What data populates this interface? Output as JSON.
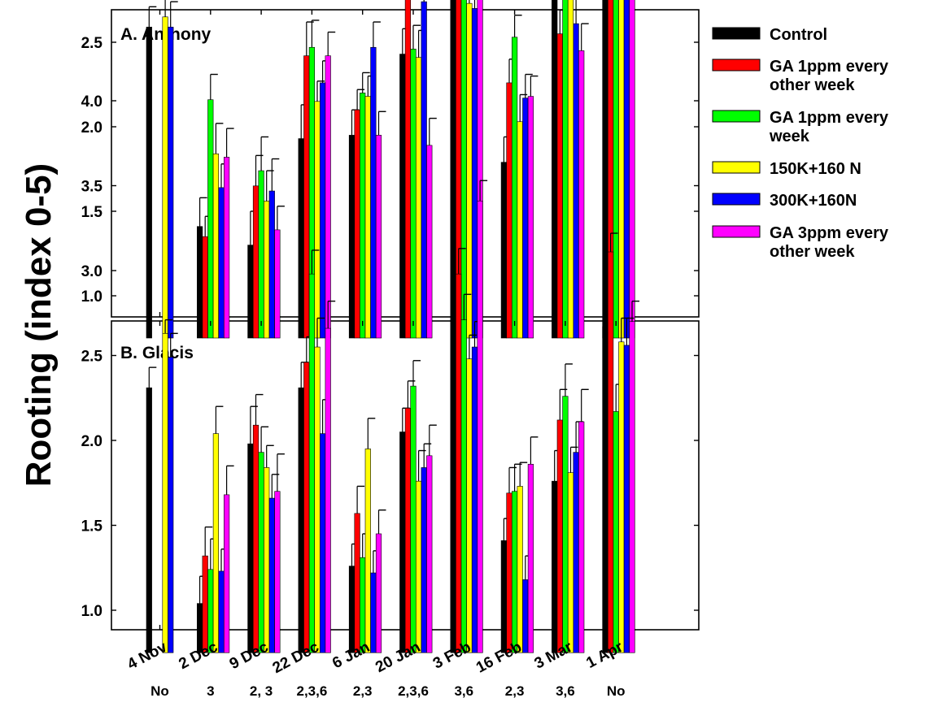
{
  "ylabel": "Rooting (index 0-5)",
  "categories": [
    "4 Nov",
    "2 Dec",
    "9 Dec",
    "22 Dec",
    "6 Jan",
    "20 Jan",
    "3 Feb",
    "16 Feb",
    "3 Mar",
    "1 Apr"
  ],
  "annotations": [
    "No",
    "3",
    "2, 3",
    "2,3,6",
    "2,3",
    "2,3,6",
    "3,6",
    "2,3",
    "3,6",
    "No"
  ],
  "legend": {
    "entries": [
      {
        "label": "Control",
        "color": "#000000"
      },
      {
        "label": "GA 1ppm every other week",
        "color": "#ff0000"
      },
      {
        "label": "GA 1ppm every week",
        "color": "#00ff00"
      },
      {
        "label": "150K+160 N",
        "color": "#ffff00"
      },
      {
        "label": "300K+160N",
        "color": "#0000ff"
      },
      {
        "label": "GA 3ppm every other week",
        "color": "#ff00ff"
      }
    ]
  },
  "chart_data": [
    {
      "type": "bar",
      "title": "A. Anthony",
      "ylim": [
        0.75,
        4.3
      ],
      "yticks": [
        "1.0",
        "1.5",
        "2.0",
        "2.5",
        "3.0",
        "3.5",
        "4.0"
      ],
      "categories": [
        "4 Nov",
        "2 Dec",
        "9 Dec",
        "22 Dec",
        "6 Jan",
        "20 Jan",
        "3 Feb",
        "16 Feb",
        "3 Mar",
        "1 Apr"
      ],
      "series": [
        {
          "name": "Control",
          "values": [
            2.59,
            1.41,
            1.3,
            1.93,
            1.95,
            2.43,
            2.76,
            1.79,
            2.77,
            3.34
          ],
          "errors": [
            0.12,
            0.17,
            0.2,
            0.2,
            0.15,
            0.15,
            0.15,
            0.15,
            0.15,
            0.14
          ]
        },
        {
          "name": "GA 1ppm every other week",
          "values": [
            null,
            1.35,
            1.65,
            2.42,
            2.1,
            2.99,
            2.77,
            2.26,
            2.55,
            3.19
          ],
          "errors": [
            null,
            0.12,
            0.18,
            0.2,
            0.12,
            0.13,
            0.15,
            0.14,
            0.14,
            0.17
          ]
        },
        {
          "name": "GA 1ppm every week",
          "values": [
            null,
            2.16,
            1.74,
            2.47,
            2.2,
            2.46,
            3.69,
            2.53,
            3.13,
            2.98
          ],
          "errors": [
            null,
            0.15,
            0.2,
            0.16,
            0.12,
            0.14,
            0.12,
            0.13,
            0.12,
            0.12
          ]
        },
        {
          "name": "150K+160 N",
          "values": [
            2.65,
            1.84,
            1.56,
            2.15,
            2.18,
            2.41,
            2.73,
            2.03,
            3.05,
            2.95
          ],
          "errors": [
            0.14,
            0.18,
            0.18,
            0.12,
            0.12,
            0.16,
            0.14,
            0.16,
            0.2,
            0.13
          ]
        },
        {
          "name": "300K+160N",
          "values": [
            2.59,
            1.64,
            1.62,
            2.26,
            2.47,
            2.74,
            2.7,
            2.17,
            2.61,
            3.06
          ],
          "errors": [
            0.15,
            0.14,
            0.19,
            0.13,
            0.15,
            0.17,
            0.18,
            0.14,
            0.16,
            0.14
          ]
        },
        {
          "name": "GA 3ppm every other week",
          "values": [
            null,
            1.82,
            1.39,
            2.42,
            1.95,
            1.89,
            3.36,
            2.18,
            2.45,
            3.32
          ],
          "errors": [
            null,
            0.17,
            0.14,
            0.14,
            0.14,
            0.16,
            0.12,
            0.12,
            0.16,
            0.12
          ]
        }
      ]
    },
    {
      "type": "bar",
      "title": "B. Glacis",
      "ylim": [
        0.75,
        4.3
      ],
      "yticks": [
        "1.0",
        "1.5",
        "2.0",
        "2.5",
        "3.0",
        "3.5",
        "4.0"
      ],
      "categories": [
        "4 Nov",
        "2 Dec",
        "9 Dec",
        "22 Dec",
        "6 Jan",
        "20 Jan",
        "3 Feb",
        "16 Feb",
        "3 Mar",
        "1 Apr"
      ],
      "series": [
        {
          "name": "Control",
          "values": [
            2.31,
            1.04,
            1.98,
            2.31,
            1.26,
            2.05,
            2.66,
            1.41,
            1.76,
            2.67
          ],
          "errors": [
            0.12,
            0.16,
            0.22,
            0.15,
            0.13,
            0.14,
            0.12,
            0.13,
            0.18,
            0.12
          ]
        },
        {
          "name": "GA 1ppm every other week",
          "values": [
            null,
            1.32,
            2.09,
            2.46,
            1.57,
            2.19,
            2.98,
            1.69,
            2.12,
            3.11
          ],
          "errors": [
            null,
            0.17,
            0.18,
            0.15,
            0.16,
            0.16,
            0.15,
            0.15,
            0.18,
            0.11
          ]
        },
        {
          "name": "GA 1ppm every week",
          "values": [
            null,
            1.24,
            1.93,
            2.98,
            1.31,
            2.32,
            2.71,
            1.7,
            2.26,
            2.17
          ],
          "errors": [
            null,
            0.18,
            0.15,
            0.14,
            0.14,
            0.15,
            0.15,
            0.16,
            0.19,
            0.16
          ]
        },
        {
          "name": "150K+160 N",
          "values": [
            2.63,
            2.04,
            1.84,
            2.55,
            1.95,
            1.76,
            2.48,
            1.73,
            1.81,
            2.58
          ],
          "errors": [
            0.08,
            0.16,
            0.13,
            0.17,
            0.18,
            0.18,
            0.14,
            0.14,
            0.15,
            0.14
          ]
        },
        {
          "name": "300K+160N",
          "values": [
            2.49,
            1.23,
            1.66,
            2.04,
            1.22,
            1.84,
            2.55,
            1.18,
            1.93,
            2.56
          ],
          "errors": [
            0.14,
            0.13,
            0.14,
            0.2,
            0.13,
            0.14,
            0.15,
            0.14,
            0.18,
            0.16
          ]
        },
        {
          "name": "GA 3ppm every other week",
          "values": [
            null,
            1.68,
            1.7,
            2.66,
            1.45,
            1.91,
            3.41,
            1.86,
            2.11,
            2.7
          ],
          "errors": [
            null,
            0.17,
            0.22,
            0.16,
            0.14,
            0.18,
            0.12,
            0.16,
            0.19,
            0.12
          ]
        }
      ]
    }
  ]
}
